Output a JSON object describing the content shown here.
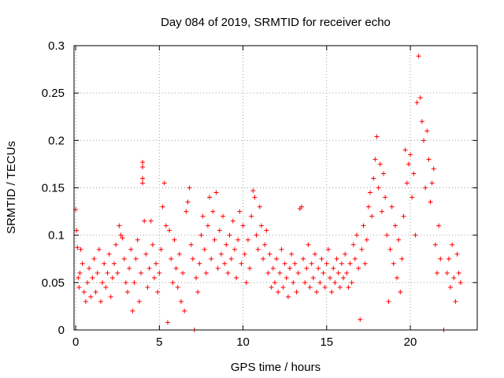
{
  "chart_data": {
    "type": "scatter",
    "title": "Day 084 of 2019, SRMTID for receiver echo",
    "xlabel": "GPS time / hours",
    "ylabel": "SRMTID / TECUs",
    "xlim": [
      -0.1,
      24
    ],
    "ylim": [
      0,
      0.3
    ],
    "x_ticks": [
      0,
      5,
      10,
      15,
      20
    ],
    "x_tick_labels": [
      "0",
      "5",
      "10",
      "15",
      "20"
    ],
    "y_ticks": [
      0,
      0.05,
      0.1,
      0.15,
      0.2,
      0.25,
      0.3
    ],
    "y_tick_labels": [
      "0",
      "0.05",
      "0.1",
      "0.15",
      "0.2",
      "0.25",
      "0.3"
    ],
    "grid": true,
    "marker": "+",
    "marker_color": "#ff0000",
    "series": [
      {
        "name": "SRMTID",
        "points": [
          [
            0.0,
            0.127
          ],
          [
            0.05,
            0.105
          ],
          [
            0.1,
            0.087
          ],
          [
            0.15,
            0.055
          ],
          [
            0.2,
            0.045
          ],
          [
            0.25,
            0.06
          ],
          [
            0.3,
            0.085
          ],
          [
            0.4,
            0.07
          ],
          [
            0.5,
            0.04
          ],
          [
            0.6,
            0.03
          ],
          [
            0.7,
            0.05
          ],
          [
            0.8,
            0.065
          ],
          [
            0.9,
            0.035
          ],
          [
            1.0,
            0.055
          ],
          [
            1.1,
            0.075
          ],
          [
            1.2,
            0.04
          ],
          [
            1.3,
            0.06
          ],
          [
            1.4,
            0.085
          ],
          [
            1.5,
            0.03
          ],
          [
            1.6,
            0.05
          ],
          [
            1.7,
            0.07
          ],
          [
            1.8,
            0.045
          ],
          [
            1.9,
            0.06
          ],
          [
            2.0,
            0.08
          ],
          [
            2.1,
            0.035
          ],
          [
            2.2,
            0.055
          ],
          [
            2.3,
            0.07
          ],
          [
            2.4,
            0.09
          ],
          [
            2.5,
            0.06
          ],
          [
            2.6,
            0.11
          ],
          [
            2.7,
            0.1
          ],
          [
            2.8,
            0.097
          ],
          [
            2.9,
            0.075
          ],
          [
            3.0,
            0.05
          ],
          [
            3.1,
            0.04
          ],
          [
            3.2,
            0.065
          ],
          [
            3.3,
            0.085
          ],
          [
            3.4,
            0.02
          ],
          [
            3.5,
            0.05
          ],
          [
            3.6,
            0.075
          ],
          [
            3.7,
            0.095
          ],
          [
            3.8,
            0.03
          ],
          [
            3.9,
            0.06
          ],
          [
            4.0,
            0.172
          ],
          [
            4.0,
            0.177
          ],
          [
            4.0,
            0.16
          ],
          [
            4.0,
            0.155
          ],
          [
            4.1,
            0.115
          ],
          [
            4.2,
            0.08
          ],
          [
            4.3,
            0.045
          ],
          [
            4.4,
            0.065
          ],
          [
            4.5,
            0.115
          ],
          [
            4.6,
            0.09
          ],
          [
            4.7,
            0.055
          ],
          [
            4.8,
            0.07
          ],
          [
            4.9,
            0.04
          ],
          [
            5.0,
            0.06
          ],
          [
            5.1,
            0.085
          ],
          [
            5.2,
            0.13
          ],
          [
            5.3,
            0.155
          ],
          [
            5.4,
            0.11
          ],
          [
            5.5,
            0.008
          ],
          [
            5.6,
            0.105
          ],
          [
            5.7,
            0.075
          ],
          [
            5.8,
            0.05
          ],
          [
            5.9,
            0.095
          ],
          [
            6.0,
            0.065
          ],
          [
            6.1,
            0.045
          ],
          [
            6.2,
            0.08
          ],
          [
            6.3,
            0.03
          ],
          [
            6.4,
            0.06
          ],
          [
            6.5,
            0.02
          ],
          [
            6.6,
            0.125
          ],
          [
            6.7,
            0.135
          ],
          [
            6.8,
            0.15
          ],
          [
            6.9,
            0.09
          ],
          [
            7.0,
            0.075
          ],
          [
            7.1,
            0.0
          ],
          [
            7.2,
            0.055
          ],
          [
            7.3,
            0.04
          ],
          [
            7.4,
            0.07
          ],
          [
            7.5,
            0.1
          ],
          [
            7.6,
            0.12
          ],
          [
            7.7,
            0.085
          ],
          [
            7.8,
            0.06
          ],
          [
            7.9,
            0.11
          ],
          [
            8.0,
            0.14
          ],
          [
            8.1,
            0.075
          ],
          [
            8.2,
            0.125
          ],
          [
            8.3,
            0.095
          ],
          [
            8.4,
            0.145
          ],
          [
            8.5,
            0.065
          ],
          [
            8.6,
            0.105
          ],
          [
            8.7,
            0.08
          ],
          [
            8.8,
            0.12
          ],
          [
            8.9,
            0.07
          ],
          [
            9.0,
            0.09
          ],
          [
            9.1,
            0.06
          ],
          [
            9.2,
            0.1
          ],
          [
            9.3,
            0.075
          ],
          [
            9.4,
            0.115
          ],
          [
            9.5,
            0.085
          ],
          [
            9.6,
            0.055
          ],
          [
            9.7,
            0.095
          ],
          [
            9.8,
            0.125
          ],
          [
            9.9,
            0.07
          ],
          [
            10.0,
            0.11
          ],
          [
            10.1,
            0.08
          ],
          [
            10.2,
            0.05
          ],
          [
            10.3,
            0.095
          ],
          [
            10.4,
            0.065
          ],
          [
            10.5,
            0.12
          ],
          [
            10.6,
            0.147
          ],
          [
            10.7,
            0.14
          ],
          [
            10.8,
            0.1
          ],
          [
            10.9,
            0.085
          ],
          [
            11.0,
            0.13
          ],
          [
            11.1,
            0.11
          ],
          [
            11.2,
            0.075
          ],
          [
            11.3,
            0.09
          ],
          [
            11.4,
            0.105
          ],
          [
            11.5,
            0.06
          ],
          [
            11.6,
            0.08
          ],
          [
            11.7,
            0.045
          ],
          [
            11.8,
            0.065
          ],
          [
            11.9,
            0.05
          ],
          [
            12.0,
            0.075
          ],
          [
            12.1,
            0.04
          ],
          [
            12.2,
            0.06
          ],
          [
            12.3,
            0.085
          ],
          [
            12.4,
            0.045
          ],
          [
            12.5,
            0.07
          ],
          [
            12.6,
            0.055
          ],
          [
            12.7,
            0.035
          ],
          [
            12.8,
            0.065
          ],
          [
            12.9,
            0.08
          ],
          [
            13.0,
            0.05
          ],
          [
            13.1,
            0.07
          ],
          [
            13.2,
            0.04
          ],
          [
            13.3,
            0.06
          ],
          [
            13.4,
            0.128
          ],
          [
            13.5,
            0.13
          ],
          [
            13.6,
            0.075
          ],
          [
            13.7,
            0.05
          ],
          [
            13.8,
            0.065
          ],
          [
            13.9,
            0.09
          ],
          [
            14.0,
            0.045
          ],
          [
            14.1,
            0.07
          ],
          [
            14.2,
            0.055
          ],
          [
            14.3,
            0.08
          ],
          [
            14.4,
            0.04
          ],
          [
            14.5,
            0.065
          ],
          [
            14.6,
            0.05
          ],
          [
            14.7,
            0.075
          ],
          [
            14.8,
            0.06
          ],
          [
            14.9,
            0.045
          ],
          [
            15.0,
            0.07
          ],
          [
            15.1,
            0.085
          ],
          [
            15.2,
            0.055
          ],
          [
            15.3,
            0.04
          ],
          [
            15.4,
            0.065
          ],
          [
            15.5,
            0.05
          ],
          [
            15.6,
            0.075
          ],
          [
            15.7,
            0.06
          ],
          [
            15.8,
            0.045
          ],
          [
            15.9,
            0.07
          ],
          [
            16.0,
            0.055
          ],
          [
            16.1,
            0.08
          ],
          [
            16.2,
            0.06
          ],
          [
            16.3,
            0.045
          ],
          [
            16.4,
            0.07
          ],
          [
            16.5,
            0.05
          ],
          [
            16.6,
            0.09
          ],
          [
            16.7,
            0.075
          ],
          [
            16.8,
            0.1
          ],
          [
            16.9,
            0.065
          ],
          [
            17.0,
            0.011
          ],
          [
            17.1,
            0.085
          ],
          [
            17.2,
            0.11
          ],
          [
            17.3,
            0.07
          ],
          [
            17.4,
            0.095
          ],
          [
            17.5,
            0.13
          ],
          [
            17.6,
            0.145
          ],
          [
            17.7,
            0.12
          ],
          [
            17.8,
            0.16
          ],
          [
            17.9,
            0.18
          ],
          [
            18.0,
            0.204
          ],
          [
            18.1,
            0.15
          ],
          [
            18.2,
            0.175
          ],
          [
            18.3,
            0.125
          ],
          [
            18.4,
            0.165
          ],
          [
            18.5,
            0.14
          ],
          [
            18.6,
            0.1
          ],
          [
            18.7,
            0.03
          ],
          [
            18.8,
            0.085
          ],
          [
            18.9,
            0.13
          ],
          [
            19.0,
            0.07
          ],
          [
            19.1,
            0.11
          ],
          [
            19.2,
            0.055
          ],
          [
            19.3,
            0.095
          ],
          [
            19.4,
            0.04
          ],
          [
            19.5,
            0.075
          ],
          [
            19.6,
            0.12
          ],
          [
            19.7,
            0.19
          ],
          [
            19.8,
            0.155
          ],
          [
            19.9,
            0.175
          ],
          [
            20.0,
            0.185
          ],
          [
            20.1,
            0.14
          ],
          [
            20.2,
            0.165
          ],
          [
            20.3,
            0.1
          ],
          [
            20.4,
            0.24
          ],
          [
            20.5,
            0.289
          ],
          [
            20.6,
            0.245
          ],
          [
            20.7,
            0.22
          ],
          [
            20.8,
            0.2
          ],
          [
            20.9,
            0.15
          ],
          [
            21.0,
            0.21
          ],
          [
            21.1,
            0.18
          ],
          [
            21.2,
            0.135
          ],
          [
            21.3,
            0.155
          ],
          [
            21.4,
            0.17
          ],
          [
            21.5,
            0.09
          ],
          [
            21.6,
            0.06
          ],
          [
            21.7,
            0.11
          ],
          [
            21.8,
            0.075
          ],
          [
            22.0,
            0.0
          ],
          [
            22.2,
            0.06
          ],
          [
            22.3,
            0.075
          ],
          [
            22.4,
            0.045
          ],
          [
            22.5,
            0.09
          ],
          [
            22.6,
            0.055
          ],
          [
            22.7,
            0.03
          ],
          [
            22.8,
            0.08
          ],
          [
            22.9,
            0.06
          ],
          [
            23.0,
            0.05
          ]
        ]
      }
    ]
  }
}
